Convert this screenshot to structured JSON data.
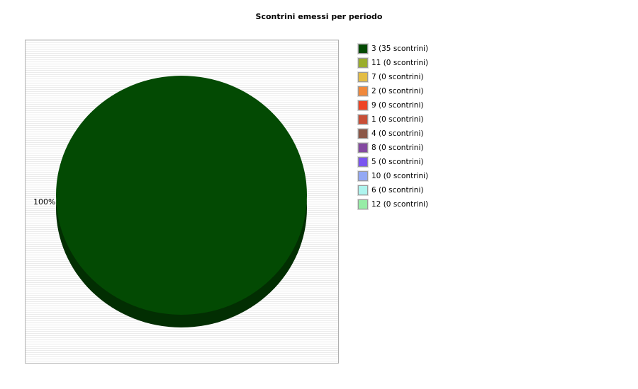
{
  "chart_data": {
    "type": "pie",
    "title": "Scontrini emessi per periodo",
    "slices": [
      {
        "label": "3 (35 scontrini)",
        "value": 35,
        "color": "#034a03"
      },
      {
        "label": "11 (0 scontrini)",
        "value": 0,
        "color": "#9aad2c"
      },
      {
        "label": "7 (0 scontrini)",
        "value": 0,
        "color": "#e3bd45"
      },
      {
        "label": "2 (0 scontrini)",
        "value": 0,
        "color": "#f0883b"
      },
      {
        "label": "9 (0 scontrini)",
        "value": 0,
        "color": "#ee4526"
      },
      {
        "label": "1 (0 scontrini)",
        "value": 0,
        "color": "#c84f37"
      },
      {
        "label": "4 (0 scontrini)",
        "value": 0,
        "color": "#8b5747"
      },
      {
        "label": "8 (0 scontrini)",
        "value": 0,
        "color": "#8449a1"
      },
      {
        "label": "5 (0 scontrini)",
        "value": 0,
        "color": "#7a55f0"
      },
      {
        "label": "10 (0 scontrini)",
        "value": 0,
        "color": "#93a8f4"
      },
      {
        "label": "6 (0 scontrini)",
        "value": 0,
        "color": "#aef4ee"
      },
      {
        "label": "12 (0 scontrini)",
        "value": 0,
        "color": "#97eda7"
      }
    ],
    "slice_labels": [
      "100%"
    ],
    "legend_position": "right",
    "grid": false,
    "style": "3d"
  }
}
